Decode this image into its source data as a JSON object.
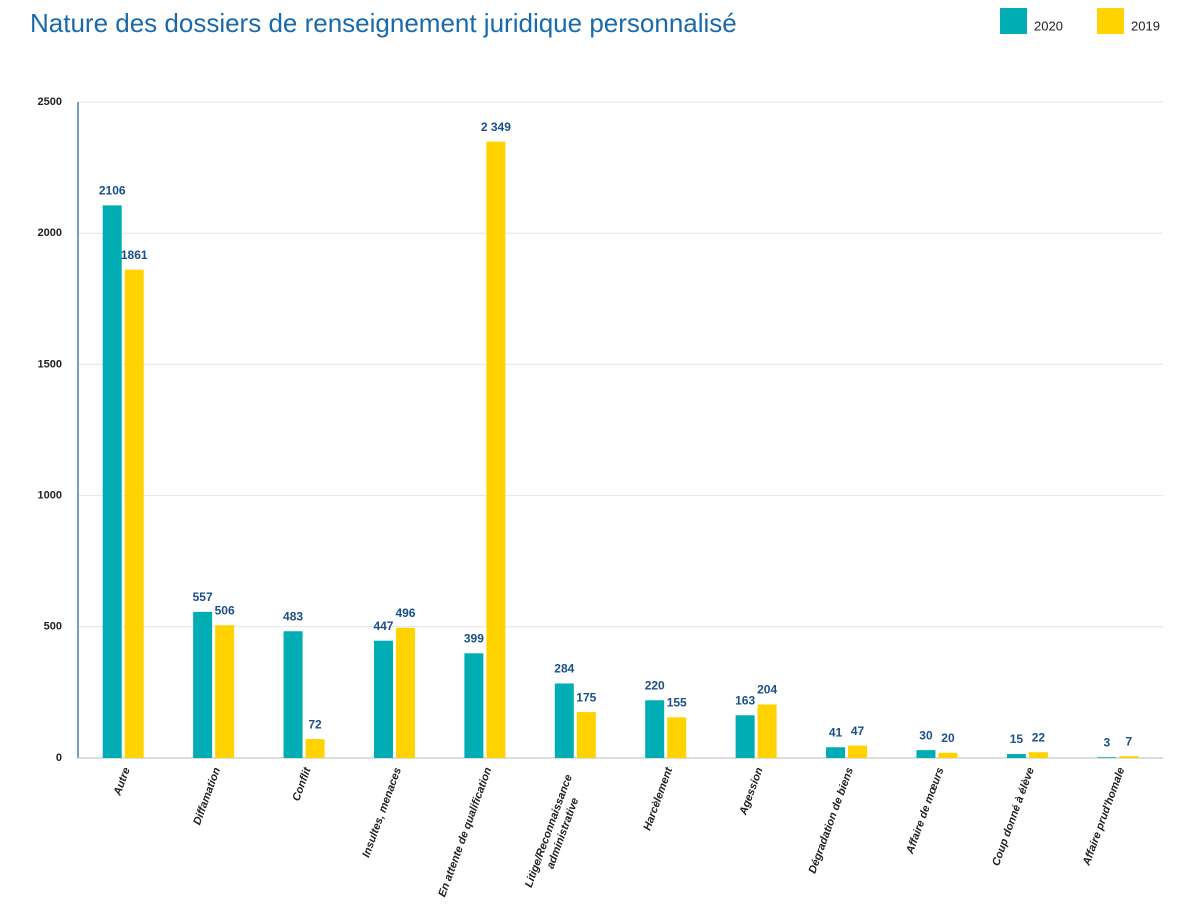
{
  "chart_data": {
    "type": "bar",
    "title": "Nature des dossiers de renseignement juridique personnalisé",
    "categories": [
      "Autre",
      "Diffamation",
      "Conflit",
      "Insultes, menaces",
      "En attente de qualification",
      "Litige/Reconnaissance administrative",
      "Harcèlement",
      "Agession",
      "Dégradation de biens",
      "Affaire de mœurs",
      "Coup donné à élève",
      "Affaire prud'homale"
    ],
    "series": [
      {
        "name": "2020",
        "color": "#00adb5",
        "values": [
          2106,
          557,
          483,
          447,
          399,
          284,
          220,
          163,
          41,
          30,
          15,
          3
        ]
      },
      {
        "name": "2019",
        "color": "#ffd200",
        "values": [
          1861,
          506,
          72,
          496,
          2349,
          175,
          155,
          204,
          47,
          20,
          22,
          7
        ],
        "value_labels": [
          "1861",
          "506",
          "72",
          "496",
          "2 349",
          "175",
          "155",
          "204",
          "47",
          "20",
          "22",
          "7"
        ]
      }
    ],
    "ylim": [
      0,
      2500
    ],
    "yticks": [
      0,
      500,
      1000,
      1500,
      2000,
      2500
    ],
    "grid": true
  }
}
